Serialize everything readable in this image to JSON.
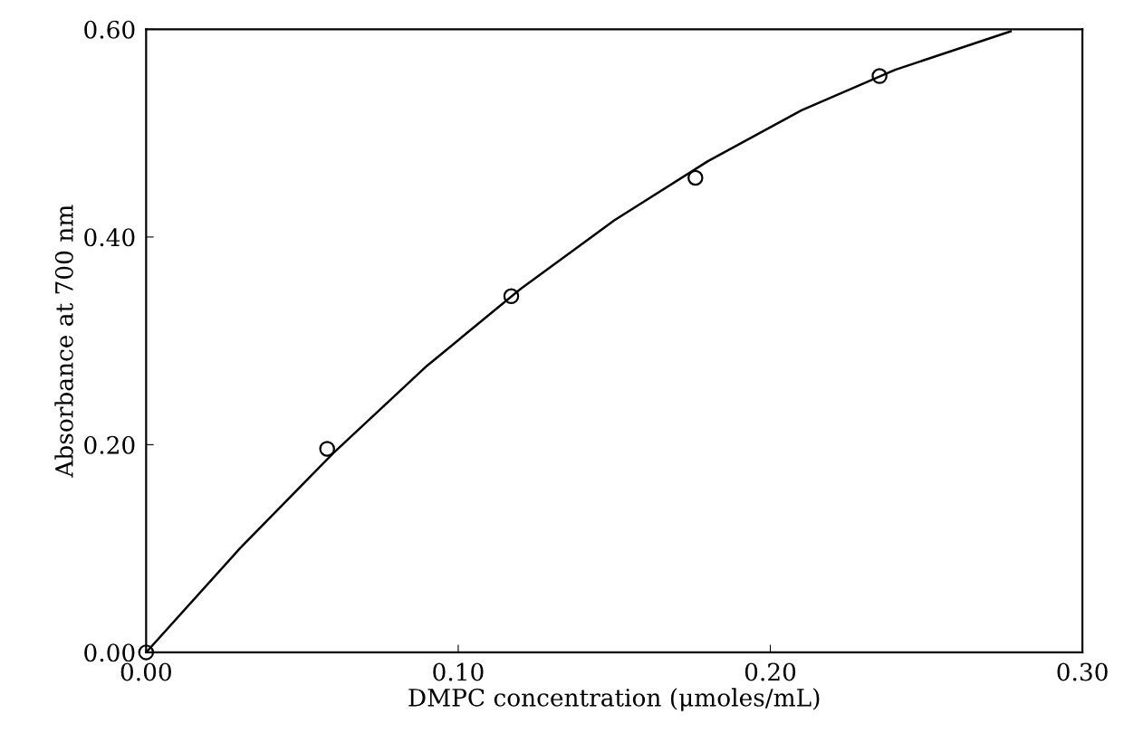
{
  "chart_data": {
    "type": "scatter",
    "xlabel": "DMPC concentration (μmoles/mL)",
    "ylabel": "Absorbance at 700 nm",
    "xlim": [
      0,
      0.3
    ],
    "xticks": [
      {
        "value": 0,
        "label": "0.00"
      },
      {
        "value": 0.1,
        "label": "0.10"
      },
      {
        "value": 0.2,
        "label": "0.20"
      },
      {
        "value": 0.3,
        "label": "0.30"
      }
    ],
    "ylim": [
      0,
      0.6
    ],
    "yticks": [
      {
        "value": 0,
        "label": "0.00"
      },
      {
        "value": 0.2,
        "label": "0.20"
      },
      {
        "value": 0.4,
        "label": "0.40"
      },
      {
        "value": 0.6,
        "label": "0.60"
      }
    ],
    "grid": false,
    "legend": false,
    "series": [
      {
        "marker": "circle",
        "color": "#000000",
        "x": [
          0,
          0.058,
          0.117,
          0.176,
          0.235
        ],
        "values": [
          0,
          0.196,
          0.343,
          0.457,
          0.555
        ]
      },
      {
        "type": "line",
        "marker": "none",
        "line_style": "solid",
        "color": "#000000",
        "x": [
          0,
          0.03,
          0.06,
          0.09,
          0.12,
          0.15,
          0.18,
          0.21,
          0.24,
          0.277
        ],
        "values": [
          0,
          0.1,
          0.192,
          0.276,
          0.35,
          0.416,
          0.473,
          0.522,
          0.561,
          0.598
        ]
      }
    ]
  }
}
